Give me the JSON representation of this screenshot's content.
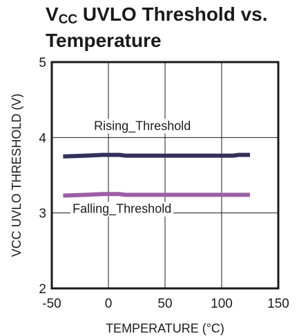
{
  "title": {
    "main": "V",
    "subscript": "CC",
    "rest_line1": " UVLO Threshold vs.",
    "line2": "Temperature"
  },
  "chart_data": {
    "type": "line",
    "xlabel": "TEMPERATURE (°C)",
    "ylabel": "VCC UVLO THRESHOLD (V)",
    "xlim": [
      -50,
      150
    ],
    "ylim": [
      2,
      5
    ],
    "x_ticks": [
      -50,
      0,
      50,
      100,
      150
    ],
    "y_ticks": [
      2,
      3,
      4,
      5
    ],
    "grid": true,
    "colors": {
      "Rising_Threshold": "#33305a",
      "Falling_Threshold": "#9b5fa6"
    },
    "series": [
      {
        "name": "Rising_Threshold",
        "x": [
          -40,
          -20,
          -5,
          0,
          10,
          15,
          20,
          40,
          60,
          80,
          100,
          110,
          115,
          125
        ],
        "y": [
          3.75,
          3.76,
          3.77,
          3.77,
          3.77,
          3.76,
          3.76,
          3.76,
          3.76,
          3.76,
          3.76,
          3.76,
          3.77,
          3.77
        ]
      },
      {
        "name": "Falling_Threshold",
        "x": [
          -40,
          -20,
          -5,
          0,
          10,
          15,
          20,
          40,
          60,
          80,
          100,
          125
        ],
        "y": [
          3.23,
          3.24,
          3.25,
          3.25,
          3.25,
          3.24,
          3.24,
          3.24,
          3.24,
          3.24,
          3.24,
          3.24
        ]
      }
    ]
  }
}
